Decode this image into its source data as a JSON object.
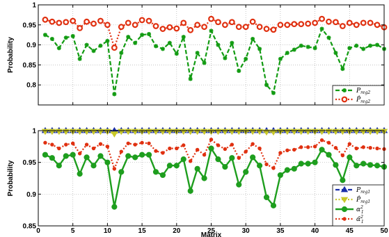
{
  "chart_data": [
    {
      "type": "line",
      "xlabel": "",
      "ylabel": "Probability",
      "xlim": [
        0,
        50
      ],
      "ylim": [
        0.75,
        1
      ],
      "xticks": [
        0,
        5,
        10,
        15,
        20,
        25,
        30,
        35,
        40,
        45,
        50
      ],
      "yticks": [
        0.75,
        0.8,
        0.85,
        0.9,
        0.95,
        1
      ],
      "ytick_labels": [
        "",
        "0.8",
        "0.85",
        "0.9",
        "0.95",
        "1"
      ],
      "grid": true,
      "legend": "bottom-right",
      "x": [
        1,
        2,
        3,
        4,
        5,
        6,
        7,
        8,
        9,
        10,
        11,
        12,
        13,
        14,
        15,
        16,
        17,
        18,
        19,
        20,
        21,
        22,
        23,
        24,
        25,
        26,
        27,
        28,
        29,
        30,
        31,
        32,
        33,
        34,
        35,
        36,
        37,
        38,
        39,
        40,
        41,
        42,
        43,
        44,
        45,
        46,
        47,
        48,
        49,
        50
      ],
      "series": [
        {
          "name": "P_reg2",
          "legend_label": "P",
          "legend_sub": "reg2",
          "color": "#129b12",
          "style": "dashed-star",
          "values": [
            0.925,
            0.915,
            0.892,
            0.918,
            0.922,
            0.865,
            0.9,
            0.885,
            0.898,
            0.91,
            0.777,
            0.88,
            0.92,
            0.905,
            0.925,
            0.927,
            0.897,
            0.89,
            0.905,
            0.878,
            0.92,
            0.815,
            0.88,
            0.855,
            0.935,
            0.9,
            0.867,
            0.905,
            0.835,
            0.865,
            0.915,
            0.89,
            0.8,
            0.78,
            0.865,
            0.88,
            0.888,
            0.898,
            0.895,
            0.892,
            0.94,
            0.918,
            0.88,
            0.84,
            0.892,
            0.898,
            0.89,
            0.898,
            0.9,
            0.89
          ]
        },
        {
          "name": "P̂_reg2",
          "legend_label": "P̂",
          "legend_sub": "reg2",
          "color": "#e03010",
          "style": "dotted-circle",
          "values": [
            0.963,
            0.958,
            0.955,
            0.957,
            0.96,
            0.942,
            0.958,
            0.953,
            0.96,
            0.95,
            0.893,
            0.945,
            0.955,
            0.95,
            0.962,
            0.96,
            0.947,
            0.94,
            0.944,
            0.941,
            0.955,
            0.937,
            0.95,
            0.945,
            0.965,
            0.957,
            0.95,
            0.957,
            0.945,
            0.945,
            0.958,
            0.945,
            0.94,
            0.938,
            0.95,
            0.95,
            0.952,
            0.952,
            0.953,
            0.955,
            0.965,
            0.958,
            0.957,
            0.947,
            0.955,
            0.95,
            0.955,
            0.955,
            0.95,
            0.944
          ]
        }
      ]
    },
    {
      "type": "line",
      "xlabel": "Matrix",
      "ylabel": "Probability",
      "xlim": [
        0,
        50
      ],
      "ylim": [
        0.85,
        1
      ],
      "xticks": [
        0,
        5,
        10,
        15,
        20,
        25,
        30,
        35,
        40,
        45,
        50
      ],
      "yticks": [
        0.85,
        0.9,
        0.95,
        1
      ],
      "ytick_labels": [
        "0.85",
        "0.9",
        "0.95",
        "1"
      ],
      "grid": true,
      "legend": "bottom-right",
      "x": [
        1,
        2,
        3,
        4,
        5,
        6,
        7,
        8,
        9,
        10,
        11,
        12,
        13,
        14,
        15,
        16,
        17,
        18,
        19,
        20,
        21,
        22,
        23,
        24,
        25,
        26,
        27,
        28,
        29,
        30,
        31,
        32,
        33,
        34,
        35,
        36,
        37,
        38,
        39,
        40,
        41,
        42,
        43,
        44,
        45,
        46,
        47,
        48,
        49,
        50
      ],
      "series": [
        {
          "name": "P_reg1",
          "legend_label": "P",
          "legend_sub": "reg1",
          "color": "#1a2fa8",
          "style": "dashed-triangle",
          "values": [
            1,
            1,
            1,
            1,
            1,
            1,
            1,
            1,
            1,
            1,
            1,
            1,
            1,
            1,
            1,
            1,
            1,
            1,
            1,
            1,
            1,
            1,
            1,
            1,
            1,
            1,
            1,
            1,
            1,
            1,
            1,
            1,
            1,
            1,
            1,
            1,
            1,
            1,
            1,
            1,
            1,
            1,
            1,
            1,
            1,
            1,
            1,
            1,
            1,
            1
          ]
        },
        {
          "name": "P̂_reg1",
          "legend_label": "P̂",
          "legend_sub": "reg1",
          "color": "#c8c828",
          "style": "dotted-triangle-down",
          "values": [
            0.999,
            0.999,
            0.999,
            0.999,
            0.999,
            0.999,
            0.999,
            0.999,
            0.999,
            0.999,
            0.995,
            0.999,
            0.999,
            0.999,
            0.999,
            0.999,
            0.999,
            0.999,
            0.999,
            0.999,
            0.999,
            0.999,
            0.999,
            0.999,
            0.999,
            0.999,
            0.999,
            0.999,
            0.999,
            0.999,
            0.999,
            0.999,
            0.998,
            0.998,
            0.999,
            0.999,
            0.999,
            0.999,
            0.999,
            0.999,
            0.999,
            0.999,
            0.999,
            0.999,
            0.999,
            0.999,
            0.999,
            0.999,
            0.999,
            0.999
          ]
        },
        {
          "name": "α̂1²",
          "legend_label": "α",
          "legend_sub": "1",
          "legend_sup": "2",
          "color": "#1e9e1e",
          "style": "solid-circle",
          "values": [
            0.962,
            0.957,
            0.945,
            0.96,
            0.962,
            0.932,
            0.958,
            0.945,
            0.96,
            0.95,
            0.88,
            0.935,
            0.96,
            0.958,
            0.962,
            0.962,
            0.935,
            0.93,
            0.945,
            0.945,
            0.955,
            0.905,
            0.94,
            0.925,
            0.972,
            0.955,
            0.943,
            0.957,
            0.915,
            0.935,
            0.958,
            0.945,
            0.895,
            0.882,
            0.93,
            0.938,
            0.94,
            0.948,
            0.948,
            0.95,
            0.97,
            0.962,
            0.946,
            0.922,
            0.958,
            0.945,
            0.948,
            0.946,
            0.945,
            0.943
          ]
        },
        {
          "name": "α̂̃1²",
          "legend_label": "α̃",
          "legend_sub": "1",
          "legend_sup": "2",
          "color": "#e03010",
          "style": "dotted-dot",
          "values": [
            0.981,
            0.978,
            0.972,
            0.978,
            0.98,
            0.964,
            0.978,
            0.972,
            0.979,
            0.975,
            0.94,
            0.967,
            0.98,
            0.978,
            0.981,
            0.98,
            0.968,
            0.965,
            0.972,
            0.972,
            0.977,
            0.952,
            0.97,
            0.962,
            0.986,
            0.977,
            0.971,
            0.978,
            0.957,
            0.967,
            0.979,
            0.972,
            0.947,
            0.941,
            0.965,
            0.969,
            0.97,
            0.974,
            0.974,
            0.975,
            0.985,
            0.981,
            0.973,
            0.961,
            0.979,
            0.972,
            0.974,
            0.973,
            0.972,
            0.971
          ]
        }
      ]
    }
  ]
}
